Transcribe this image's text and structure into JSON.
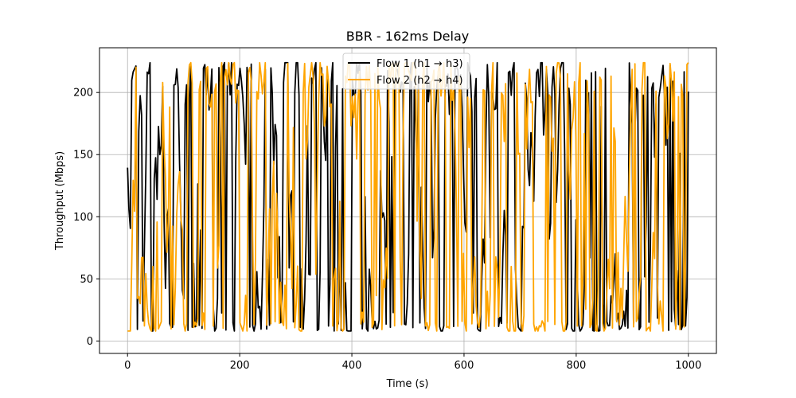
{
  "chart_data": {
    "type": "line",
    "title": "BBR - 162ms Delay",
    "xlabel": "Time (s)",
    "ylabel": "Throughput (Mbps)",
    "xlim": [
      -50,
      1050
    ],
    "ylim": [
      -10,
      236
    ],
    "xticks": [
      0,
      200,
      400,
      600,
      800,
      1000
    ],
    "yticks": [
      0,
      50,
      100,
      150,
      200
    ],
    "grid": true,
    "legend_position": "top-center",
    "series": [
      {
        "name": "Flow 1 (h1 → h3)",
        "color": "#000000",
        "generated_points": 400
      },
      {
        "name": "Flow 2 (h2 → h4)",
        "color": "#ffa500",
        "generated_points": 400
      }
    ],
    "range_min": 8,
    "range_max": 224
  }
}
